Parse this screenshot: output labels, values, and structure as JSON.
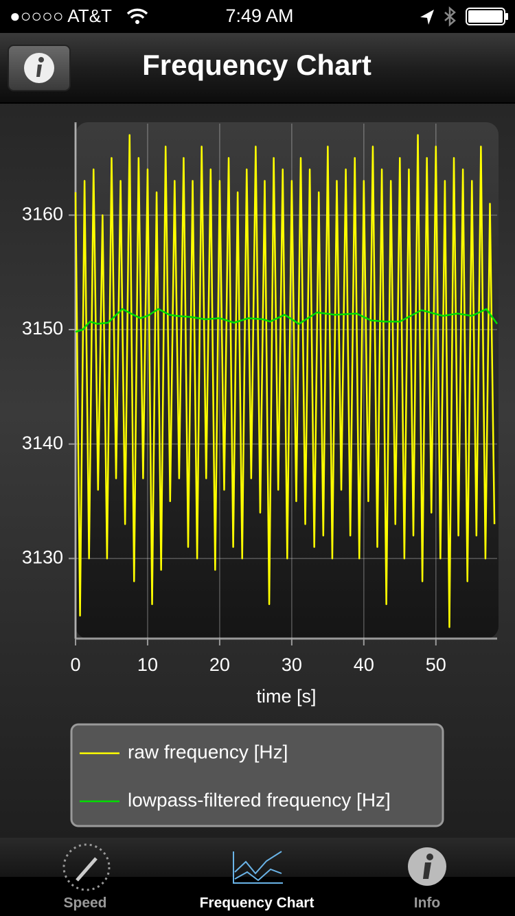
{
  "status_bar": {
    "carrier": "●○○○○ AT&T",
    "time": "7:49 AM"
  },
  "nav_bar": {
    "title": "Frequency Chart"
  },
  "chart_data": {
    "type": "line",
    "xlabel": "time [s]",
    "xlim": [
      0,
      58.5
    ],
    "ylim": [
      3123,
      3168
    ],
    "xticks": [
      0,
      10,
      20,
      30,
      40,
      50
    ],
    "yticks": [
      3130,
      3140,
      3150,
      3160
    ],
    "grid": true,
    "legend": "bottom",
    "series": [
      {
        "name": "raw frequency [Hz]",
        "color": "#ffff00",
        "x": [
          0,
          0.625,
          1.25,
          1.875,
          2.5,
          3.125,
          3.75,
          4.375,
          5,
          5.625,
          6.25,
          6.875,
          7.5,
          8.125,
          8.75,
          9.375,
          10,
          10.625,
          11.25,
          11.875,
          12.5,
          13.125,
          13.75,
          14.375,
          15,
          15.625,
          16.25,
          16.875,
          17.5,
          18.125,
          18.75,
          19.375,
          20,
          20.625,
          21.25,
          21.875,
          22.5,
          23.125,
          23.75,
          24.375,
          25,
          25.625,
          26.25,
          26.875,
          27.5,
          28.125,
          28.75,
          29.375,
          30,
          30.625,
          31.25,
          31.875,
          32.5,
          33.125,
          33.75,
          34.375,
          35,
          35.625,
          36.25,
          36.875,
          37.5,
          38.125,
          38.75,
          39.375,
          40,
          40.625,
          41.25,
          41.875,
          42.5,
          43.125,
          43.75,
          44.375,
          45,
          45.625,
          46.25,
          46.875,
          47.5,
          48.125,
          48.75,
          49.375,
          50,
          50.625,
          51.25,
          51.875,
          52.5,
          53.125,
          53.75,
          54.375,
          55,
          55.625,
          56.25,
          56.875,
          57.5,
          58.125
        ],
        "values": [
          3162,
          3125,
          3163,
          3130,
          3164,
          3136,
          3160,
          3130,
          3165,
          3137,
          3163,
          3133,
          3167,
          3128,
          3165,
          3137,
          3164,
          3126,
          3162,
          3129,
          3166,
          3135,
          3163,
          3137,
          3165,
          3131,
          3163,
          3130,
          3166,
          3137,
          3164,
          3129,
          3163,
          3136,
          3165,
          3131,
          3162,
          3130,
          3164,
          3137,
          3166,
          3134,
          3163,
          3126,
          3165,
          3136,
          3164,
          3130,
          3163,
          3135,
          3165,
          3133,
          3164,
          3131,
          3162,
          3132,
          3166,
          3130,
          3163,
          3136,
          3164,
          3132,
          3165,
          3130,
          3163,
          3135,
          3166,
          3131,
          3164,
          3126,
          3163,
          3133,
          3165,
          3130,
          3164,
          3132,
          3167,
          3128,
          3165,
          3134,
          3166,
          3130,
          3163,
          3124,
          3165,
          3132,
          3164,
          3128,
          3163,
          3132,
          3166,
          3130,
          3161,
          3133
        ]
      },
      {
        "name": "lowpass-filtered frequency [Hz]",
        "color": "#00dd00",
        "x": [
          0,
          1,
          2,
          3,
          4.5,
          6.5,
          8,
          9,
          10,
          11.5,
          13,
          14,
          16,
          18,
          20,
          22,
          24,
          26,
          27,
          29,
          31,
          33.5,
          36,
          39,
          41,
          43,
          45,
          48,
          51,
          53,
          55,
          57,
          58.5
        ],
        "values": [
          3149.8,
          3150,
          3150.7,
          3150.5,
          3150.6,
          3151.8,
          3151.3,
          3151,
          3151.2,
          3151.8,
          3151.3,
          3151.2,
          3151.1,
          3150.9,
          3151,
          3150.6,
          3151,
          3150.9,
          3150.7,
          3151.3,
          3150.5,
          3151.5,
          3151.3,
          3151.4,
          3150.8,
          3150.7,
          3150.7,
          3151.7,
          3151.2,
          3151.4,
          3151.2,
          3151.8,
          3150.5
        ]
      }
    ]
  },
  "tab_bar": {
    "tabs": [
      "Speed",
      "Frequency Chart",
      "Info"
    ],
    "selected": 1
  }
}
